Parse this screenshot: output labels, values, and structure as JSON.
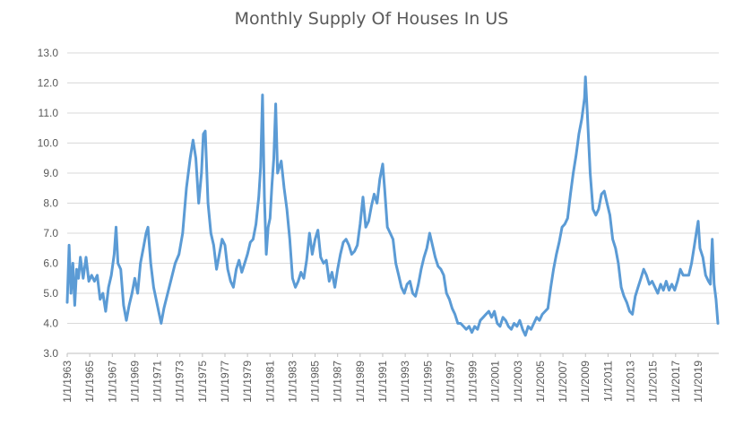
{
  "chart_data": {
    "type": "line",
    "title": "Monthly Supply Of Houses In US",
    "xlabel": "",
    "ylabel": "",
    "ylim": [
      3.0,
      13.0
    ],
    "yticks": [
      "3.0",
      "4.0",
      "5.0",
      "6.0",
      "7.0",
      "8.0",
      "9.0",
      "10.0",
      "11.0",
      "12.0",
      "13.0"
    ],
    "xticks": [
      "1/1/1963",
      "1/1/1965",
      "1/1/1967",
      "1/1/1969",
      "1/1/1971",
      "1/1/1973",
      "1/1/1975",
      "1/1/1977",
      "1/1/1979",
      "1/1/1981",
      "1/1/1983",
      "1/1/1985",
      "1/1/1987",
      "1/1/1989",
      "1/1/1991",
      "1/1/1993",
      "1/1/1995",
      "1/1/1997",
      "1/1/1999",
      "1/1/2001",
      "1/1/2003",
      "1/1/2005",
      "1/1/2007",
      "1/1/2009",
      "1/1/2011",
      "1/1/2013",
      "1/1/2015",
      "1/1/2017",
      "1/1/2019"
    ],
    "grid": true,
    "legend": "none",
    "line_color": "#5b9bd5",
    "series": [
      {
        "values": [
          [
            "1963-01",
            4.7
          ],
          [
            "1963-03",
            6.6
          ],
          [
            "1963-05",
            5.0
          ],
          [
            "1963-07",
            6.0
          ],
          [
            "1963-09",
            4.6
          ],
          [
            "1963-11",
            5.8
          ],
          [
            "1964-01",
            5.5
          ],
          [
            "1964-03",
            6.2
          ],
          [
            "1964-06",
            5.5
          ],
          [
            "1964-09",
            6.2
          ],
          [
            "1964-12",
            5.4
          ],
          [
            "1965-03",
            5.6
          ],
          [
            "1965-06",
            5.4
          ],
          [
            "1965-09",
            5.6
          ],
          [
            "1965-12",
            4.8
          ],
          [
            "1966-03",
            5.0
          ],
          [
            "1966-06",
            4.4
          ],
          [
            "1966-09",
            5.2
          ],
          [
            "1966-12",
            5.6
          ],
          [
            "1967-03",
            6.3
          ],
          [
            "1967-05",
            7.2
          ],
          [
            "1967-07",
            6.0
          ],
          [
            "1967-10",
            5.8
          ],
          [
            "1968-01",
            4.6
          ],
          [
            "1968-04",
            4.1
          ],
          [
            "1968-07",
            4.6
          ],
          [
            "1968-10",
            5.0
          ],
          [
            "1969-01",
            5.5
          ],
          [
            "1969-04",
            5.0
          ],
          [
            "1969-07",
            6.0
          ],
          [
            "1969-10",
            6.5
          ],
          [
            "1970-01",
            7.0
          ],
          [
            "1970-03",
            7.2
          ],
          [
            "1970-06",
            6.0
          ],
          [
            "1970-09",
            5.2
          ],
          [
            "1971-01",
            4.6
          ],
          [
            "1971-05",
            4.0
          ],
          [
            "1971-08",
            4.5
          ],
          [
            "1971-12",
            5.0
          ],
          [
            "1972-04",
            5.5
          ],
          [
            "1972-08",
            6.0
          ],
          [
            "1972-12",
            6.3
          ],
          [
            "1973-04",
            7.0
          ],
          [
            "1973-08",
            8.5
          ],
          [
            "1973-12",
            9.5
          ],
          [
            "1974-03",
            10.1
          ],
          [
            "1974-06",
            9.5
          ],
          [
            "1974-09",
            8.0
          ],
          [
            "1974-12",
            9.0
          ],
          [
            "1975-02",
            10.3
          ],
          [
            "1975-04",
            10.4
          ],
          [
            "1975-07",
            8.0
          ],
          [
            "1975-10",
            7.0
          ],
          [
            "1976-01",
            6.6
          ],
          [
            "1976-04",
            5.8
          ],
          [
            "1976-07",
            6.3
          ],
          [
            "1976-10",
            6.8
          ],
          [
            "1977-01",
            6.6
          ],
          [
            "1977-04",
            5.8
          ],
          [
            "1977-07",
            5.4
          ],
          [
            "1977-10",
            5.2
          ],
          [
            "1978-01",
            5.8
          ],
          [
            "1978-04",
            6.1
          ],
          [
            "1978-07",
            5.7
          ],
          [
            "1978-10",
            6.0
          ],
          [
            "1979-01",
            6.3
          ],
          [
            "1979-04",
            6.7
          ],
          [
            "1979-07",
            6.8
          ],
          [
            "1979-10",
            7.3
          ],
          [
            "1980-01",
            8.2
          ],
          [
            "1980-03",
            9.2
          ],
          [
            "1980-05",
            11.6
          ],
          [
            "1980-07",
            8.2
          ],
          [
            "1980-09",
            6.3
          ],
          [
            "1980-11",
            7.2
          ],
          [
            "1981-01",
            7.5
          ],
          [
            "1981-03",
            8.6
          ],
          [
            "1981-05",
            9.5
          ],
          [
            "1981-07",
            11.3
          ],
          [
            "1981-09",
            9.0
          ],
          [
            "1981-11",
            9.2
          ],
          [
            "1982-01",
            9.4
          ],
          [
            "1982-04",
            8.5
          ],
          [
            "1982-07",
            7.8
          ],
          [
            "1982-10",
            6.8
          ],
          [
            "1983-01",
            5.5
          ],
          [
            "1983-04",
            5.2
          ],
          [
            "1983-07",
            5.4
          ],
          [
            "1983-10",
            5.7
          ],
          [
            "1984-01",
            5.5
          ],
          [
            "1984-04",
            6.1
          ],
          [
            "1984-07",
            7.0
          ],
          [
            "1984-10",
            6.3
          ],
          [
            "1985-01",
            6.8
          ],
          [
            "1985-04",
            7.1
          ],
          [
            "1985-07",
            6.2
          ],
          [
            "1985-10",
            6.0
          ],
          [
            "1986-01",
            6.1
          ],
          [
            "1986-04",
            5.4
          ],
          [
            "1986-07",
            5.7
          ],
          [
            "1986-10",
            5.2
          ],
          [
            "1987-01",
            5.8
          ],
          [
            "1987-04",
            6.3
          ],
          [
            "1987-07",
            6.7
          ],
          [
            "1987-10",
            6.8
          ],
          [
            "1988-01",
            6.6
          ],
          [
            "1988-04",
            6.3
          ],
          [
            "1988-07",
            6.4
          ],
          [
            "1988-10",
            6.6
          ],
          [
            "1989-01",
            7.3
          ],
          [
            "1989-04",
            8.2
          ],
          [
            "1989-07",
            7.2
          ],
          [
            "1989-10",
            7.4
          ],
          [
            "1990-01",
            7.9
          ],
          [
            "1990-04",
            8.3
          ],
          [
            "1990-07",
            8.0
          ],
          [
            "1990-10",
            8.8
          ],
          [
            "1991-01",
            9.3
          ],
          [
            "1991-03",
            8.5
          ],
          [
            "1991-06",
            7.2
          ],
          [
            "1991-09",
            7.0
          ],
          [
            "1991-12",
            6.8
          ],
          [
            "1992-03",
            6.0
          ],
          [
            "1992-06",
            5.6
          ],
          [
            "1992-09",
            5.2
          ],
          [
            "1992-12",
            5.0
          ],
          [
            "1993-03",
            5.3
          ],
          [
            "1993-06",
            5.4
          ],
          [
            "1993-09",
            5.0
          ],
          [
            "1993-12",
            4.9
          ],
          [
            "1994-03",
            5.3
          ],
          [
            "1994-06",
            5.8
          ],
          [
            "1994-09",
            6.2
          ],
          [
            "1994-12",
            6.5
          ],
          [
            "1995-03",
            7.0
          ],
          [
            "1995-06",
            6.6
          ],
          [
            "1995-09",
            6.2
          ],
          [
            "1995-12",
            5.9
          ],
          [
            "1996-03",
            5.8
          ],
          [
            "1996-06",
            5.6
          ],
          [
            "1996-09",
            5.0
          ],
          [
            "1996-12",
            4.8
          ],
          [
            "1997-03",
            4.5
          ],
          [
            "1997-06",
            4.3
          ],
          [
            "1997-09",
            4.0
          ],
          [
            "1997-12",
            4.0
          ],
          [
            "1998-03",
            3.9
          ],
          [
            "1998-06",
            3.8
          ],
          [
            "1998-09",
            3.9
          ],
          [
            "1998-12",
            3.7
          ],
          [
            "1999-03",
            3.9
          ],
          [
            "1999-06",
            3.8
          ],
          [
            "1999-09",
            4.1
          ],
          [
            "1999-12",
            4.2
          ],
          [
            "2000-03",
            4.3
          ],
          [
            "2000-06",
            4.4
          ],
          [
            "2000-09",
            4.2
          ],
          [
            "2000-12",
            4.4
          ],
          [
            "2001-03",
            4.0
          ],
          [
            "2001-06",
            3.9
          ],
          [
            "2001-09",
            4.2
          ],
          [
            "2001-12",
            4.1
          ],
          [
            "2002-03",
            3.9
          ],
          [
            "2002-06",
            3.8
          ],
          [
            "2002-09",
            4.0
          ],
          [
            "2002-12",
            3.9
          ],
          [
            "2003-03",
            4.1
          ],
          [
            "2003-06",
            3.8
          ],
          [
            "2003-09",
            3.6
          ],
          [
            "2003-12",
            3.9
          ],
          [
            "2004-03",
            3.8
          ],
          [
            "2004-06",
            4.0
          ],
          [
            "2004-09",
            4.2
          ],
          [
            "2004-12",
            4.1
          ],
          [
            "2005-03",
            4.3
          ],
          [
            "2005-06",
            4.4
          ],
          [
            "2005-09",
            4.5
          ],
          [
            "2005-12",
            5.2
          ],
          [
            "2006-03",
            5.8
          ],
          [
            "2006-06",
            6.3
          ],
          [
            "2006-09",
            6.7
          ],
          [
            "2006-12",
            7.2
          ],
          [
            "2007-03",
            7.3
          ],
          [
            "2007-06",
            7.5
          ],
          [
            "2007-09",
            8.3
          ],
          [
            "2007-12",
            9.0
          ],
          [
            "2008-03",
            9.6
          ],
          [
            "2008-06",
            10.3
          ],
          [
            "2008-09",
            10.8
          ],
          [
            "2008-12",
            11.5
          ],
          [
            "2009-01",
            12.2
          ],
          [
            "2009-03",
            11.0
          ],
          [
            "2009-06",
            9.0
          ],
          [
            "2009-09",
            7.8
          ],
          [
            "2009-12",
            7.6
          ],
          [
            "2010-03",
            7.8
          ],
          [
            "2010-06",
            8.3
          ],
          [
            "2010-09",
            8.4
          ],
          [
            "2010-12",
            8.0
          ],
          [
            "2011-03",
            7.6
          ],
          [
            "2011-06",
            6.8
          ],
          [
            "2011-09",
            6.5
          ],
          [
            "2011-12",
            6.0
          ],
          [
            "2012-03",
            5.2
          ],
          [
            "2012-06",
            4.9
          ],
          [
            "2012-09",
            4.7
          ],
          [
            "2012-12",
            4.4
          ],
          [
            "2013-03",
            4.3
          ],
          [
            "2013-06",
            4.9
          ],
          [
            "2013-09",
            5.2
          ],
          [
            "2013-12",
            5.5
          ],
          [
            "2014-03",
            5.8
          ],
          [
            "2014-06",
            5.6
          ],
          [
            "2014-09",
            5.3
          ],
          [
            "2014-12",
            5.4
          ],
          [
            "2015-03",
            5.2
          ],
          [
            "2015-06",
            5.0
          ],
          [
            "2015-09",
            5.3
          ],
          [
            "2015-12",
            5.1
          ],
          [
            "2016-03",
            5.4
          ],
          [
            "2016-06",
            5.1
          ],
          [
            "2016-09",
            5.3
          ],
          [
            "2016-12",
            5.1
          ],
          [
            "2017-03",
            5.4
          ],
          [
            "2017-06",
            5.8
          ],
          [
            "2017-09",
            5.6
          ],
          [
            "2017-12",
            5.6
          ],
          [
            "2018-03",
            5.6
          ],
          [
            "2018-06",
            6.0
          ],
          [
            "2018-09",
            6.6
          ],
          [
            "2018-12",
            7.2
          ],
          [
            "2019-01",
            7.4
          ],
          [
            "2019-03",
            6.5
          ],
          [
            "2019-06",
            6.2
          ],
          [
            "2019-09",
            5.6
          ],
          [
            "2019-12",
            5.4
          ],
          [
            "2020-02",
            5.3
          ],
          [
            "2020-04",
            6.8
          ],
          [
            "2020-06",
            5.3
          ],
          [
            "2020-08",
            4.8
          ],
          [
            "2020-10",
            4.0
          ]
        ]
      }
    ]
  }
}
